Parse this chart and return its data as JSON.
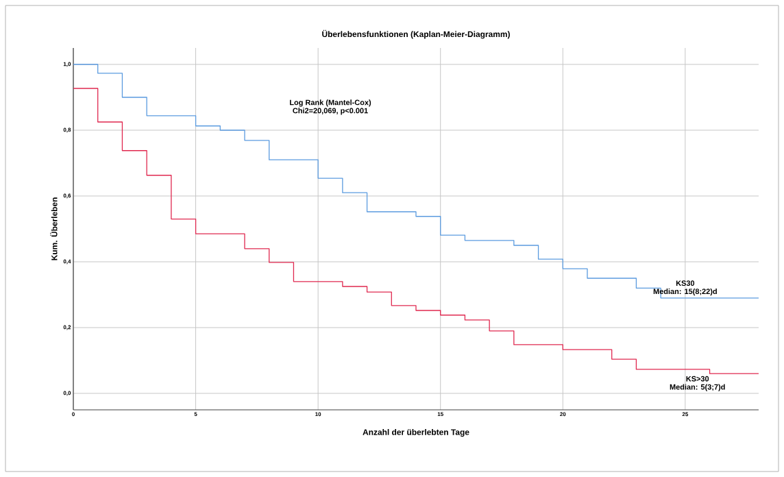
{
  "chart_data": {
    "type": "step",
    "title": "Überlebensfunktionen (Kaplan-Meier-Diagramm)",
    "xlabel": "Anzahl der überlebten Tage",
    "ylabel": "Kum. Überleben",
    "xlim": [
      0,
      28
    ],
    "ylim": [
      -0.05,
      1.05
    ],
    "xticks": [
      0,
      5,
      10,
      15,
      20,
      25
    ],
    "yticks": [
      {
        "value": 0,
        "label": "0,0"
      },
      {
        "value": 0.2,
        "label": "0,2"
      },
      {
        "value": 0.4,
        "label": "0,4"
      },
      {
        "value": 0.6,
        "label": "0,6"
      },
      {
        "value": 0.8,
        "label": "0,8"
      },
      {
        "value": 1.0,
        "label": "1,0"
      }
    ],
    "grid": true,
    "annotations": [
      "Log Rank (Mantel-Cox)",
      "Chi2=20,069, p<0.001",
      "Median: 15(8;22)d",
      "Median: 5(3;7)d"
    ],
    "series": [
      {
        "name": "KS30",
        "color": "#5b9bdf",
        "x": [
          0,
          1,
          2,
          3,
          5,
          6,
          7,
          8,
          10,
          11,
          12,
          14,
          15,
          16,
          18,
          19,
          20,
          21,
          23,
          24,
          28
        ],
        "values": [
          1.0,
          0.973,
          0.9,
          0.844,
          0.813,
          0.8,
          0.769,
          0.71,
          0.654,
          0.61,
          0.552,
          0.538,
          0.481,
          0.465,
          0.45,
          0.408,
          0.379,
          0.35,
          0.32,
          0.29,
          0.29
        ]
      },
      {
        "name": "KS>30",
        "color": "#e0284f",
        "x": [
          0,
          1,
          2,
          3,
          4,
          5,
          7,
          8,
          9,
          11,
          12,
          13,
          14,
          15,
          16,
          17,
          18,
          20,
          22,
          23,
          26,
          28
        ],
        "values": [
          0.927,
          0.825,
          0.738,
          0.663,
          0.53,
          0.485,
          0.44,
          0.398,
          0.34,
          0.325,
          0.308,
          0.267,
          0.252,
          0.238,
          0.223,
          0.19,
          0.148,
          0.133,
          0.104,
          0.073,
          0.06,
          0.06
        ]
      }
    ]
  }
}
